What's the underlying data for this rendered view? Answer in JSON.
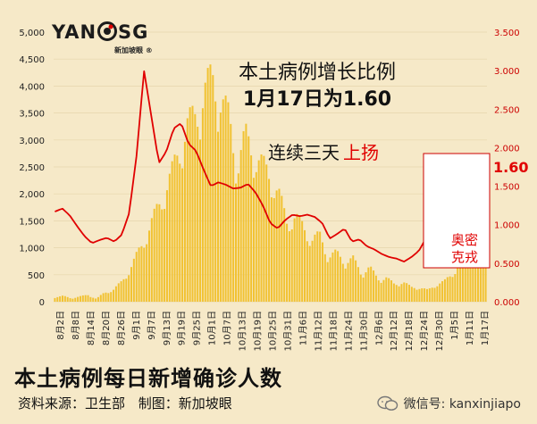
{
  "logo": {
    "left": "YAN",
    "right": "SG",
    "sub": "新加坡眼 ®"
  },
  "headline": {
    "line1": "本土病例增长比例",
    "line2": "1月17日为1.60",
    "line3_a": "连续三天",
    "line3_b": "上扬"
  },
  "annotation": {
    "value": "1.60",
    "label1": "奥密",
    "label2": "克戎"
  },
  "footer": {
    "title": "本土病例每日新增确诊人数",
    "source": "资料来源：卫生部",
    "maker": "制图：新加坡眼",
    "wechat": "微信号: kanxinjiapo"
  },
  "colors": {
    "bar": "#f1c232",
    "line": "#e00000",
    "left_axis": "#222222",
    "right_axis": "#cc0000"
  },
  "chart_data": {
    "type": "bar+line",
    "x_tick_labels": [
      "8月2日",
      "8月8日",
      "8月14日",
      "8月20日",
      "8月26日",
      "9月1日",
      "9月7日",
      "9月13日",
      "9月19日",
      "9月25日",
      "10月1日",
      "10月7日",
      "10月13日",
      "10月19日",
      "10月25日",
      "10月31日",
      "11月6日",
      "11月12日",
      "11月18日",
      "11月24日",
      "11月30日",
      "12月6日",
      "12月12日",
      "12月18日",
      "12月24日",
      "12月30日",
      "1月5日",
      "1月11日",
      "1月17日"
    ],
    "left_axis": {
      "ticks": [
        "0",
        "500",
        "1,000",
        "1,500",
        "2,000",
        "2,500",
        "3,000",
        "3,500",
        "4,000",
        "4,500",
        "5,000"
      ],
      "range": [
        0,
        5000
      ]
    },
    "right_axis": {
      "ticks": [
        "0.000",
        "0.500",
        "1.000",
        "1.500",
        "2.000",
        "2.500",
        "3.000",
        "3.500"
      ],
      "range": [
        0,
        3.5
      ]
    },
    "bar_series": {
      "name": "本土病例每日新增确诊人数",
      "anchor_values": [
        80,
        100,
        60,
        90,
        120,
        50,
        160,
        200,
        340,
        550,
        850,
        1150,
        1500,
        1850,
        2200,
        2650,
        3100,
        3250,
        3700,
        3900,
        3600,
        3200,
        2400,
        2900,
        2600,
        2400,
        2200,
        1900,
        1400,
        1500,
        1300,
        1100,
        1150,
        800,
        850,
        700,
        750,
        500,
        600,
        400,
        420,
        300,
        350,
        250,
        250,
        200,
        300,
        350,
        500,
        700,
        900,
        1150,
        600
      ]
    },
    "line_series": {
      "name": "本土病例增长比例",
      "anchor_values": [
        1.17,
        1.21,
        1.12,
        0.98,
        0.85,
        0.76,
        0.8,
        0.83,
        0.78,
        0.87,
        1.15,
        1.9,
        3.0,
        2.4,
        1.8,
        1.95,
        2.25,
        2.32,
        2.05,
        1.96,
        1.72,
        1.5,
        1.55,
        1.52,
        1.47,
        1.48,
        1.53,
        1.42,
        1.25,
        1.02,
        0.95,
        1.06,
        1.13,
        1.11,
        1.13,
        1.1,
        1.02,
        0.82,
        0.88,
        0.95,
        0.78,
        0.81,
        0.72,
        0.68,
        0.62,
        0.58,
        0.56,
        0.52,
        0.58,
        0.66,
        0.83,
        1.05,
        1.5,
        1.8,
        1.82,
        1.58,
        1.35,
        1.4,
        1.6
      ]
    }
  }
}
